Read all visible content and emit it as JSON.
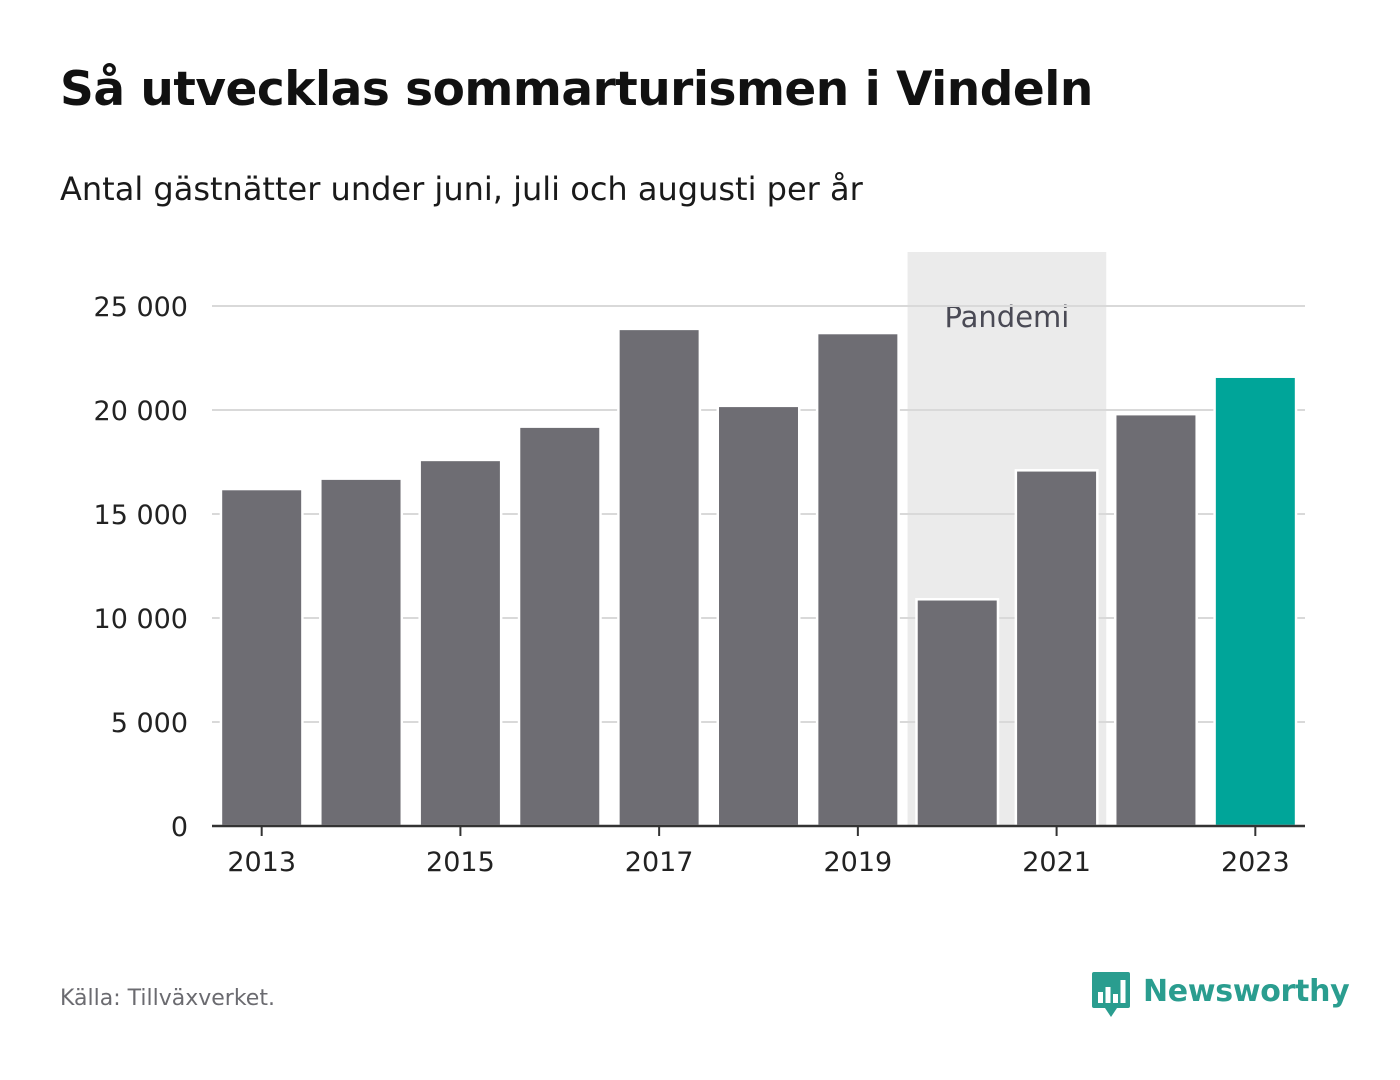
{
  "title": "Så utvecklas sommarturismen i Vindeln",
  "subtitle": "Antal gästnätter under juni, juli och augusti per år",
  "source": "Källa: Tillväxverket.",
  "brand": {
    "name": "Newsworthy",
    "logo_icon": "bar-chart-speech-bubble-icon",
    "color": "#2a9d8f"
  },
  "chart_data": {
    "type": "bar",
    "categories": [
      "2013",
      "2014",
      "2015",
      "2016",
      "2017",
      "2018",
      "2019",
      "2020",
      "2021",
      "2022",
      "2023"
    ],
    "values": [
      16200,
      16700,
      17600,
      19200,
      23900,
      20200,
      23700,
      10900,
      17100,
      19800,
      21600
    ],
    "highlight_category": "2023",
    "xticks": [
      "2013",
      "2015",
      "2017",
      "2019",
      "2021",
      "2023"
    ],
    "yticks": [
      0,
      5000,
      10000,
      15000,
      20000,
      25000
    ],
    "ytick_labels": [
      "0",
      "5 000",
      "10 000",
      "15 000",
      "20 000",
      "25 000"
    ],
    "ylim": [
      0,
      27500
    ],
    "grid": true,
    "annotation": {
      "label": "Pandemi",
      "from_category": "2020",
      "to_category": "2021"
    },
    "colors": {
      "bar": "#6e6d73",
      "highlight": "#00a599",
      "shade": "#ebebeb",
      "grid": "#d9d9d9",
      "axis": "#333333"
    }
  }
}
